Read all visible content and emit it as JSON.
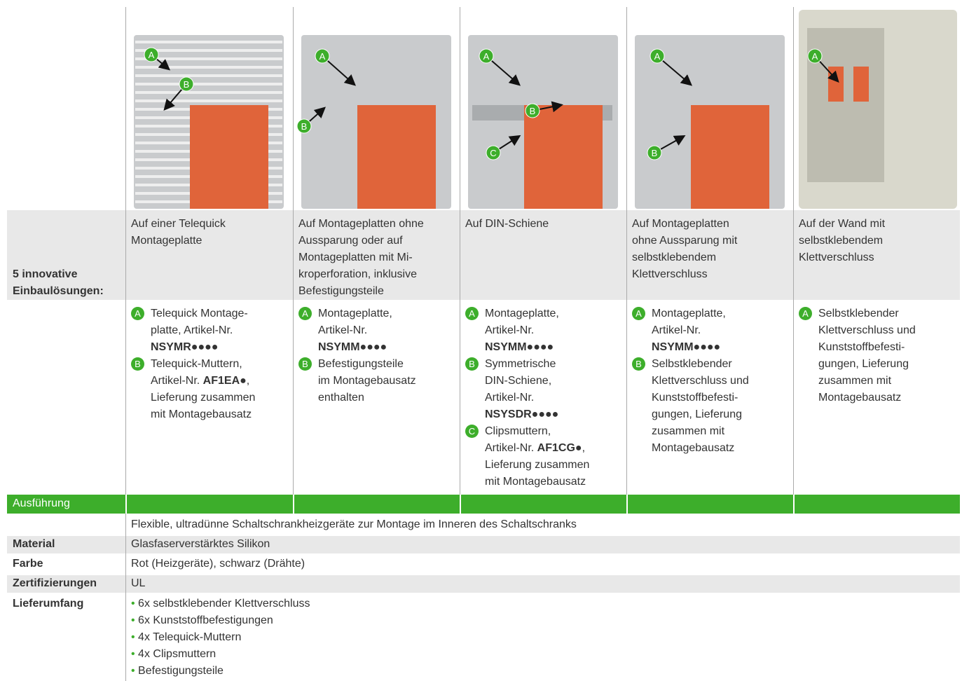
{
  "intro_label": [
    "5 innovative",
    "Einbaulösungen:"
  ],
  "solutions": [
    {
      "title": [
        "Auf einer Telequick",
        "Montageplatte"
      ],
      "callouts": [
        "A",
        "B"
      ],
      "parts": [
        {
          "marker": "A",
          "lines": [
            "Telequick Montage-",
            "platte, Artikel-Nr.",
            [
              {
                "bold": "NSYMR●●●●"
              }
            ]
          ]
        },
        {
          "marker": "B",
          "lines": [
            "Telequick-Muttern,",
            [
              "Artikel-Nr. ",
              {
                "bold": "AF1EA●"
              },
              ","
            ],
            "Lieferung zusammen",
            "mit Montagebausatz"
          ]
        }
      ]
    },
    {
      "title": [
        "Auf Montageplatten ohne",
        "Aussparung oder auf",
        "Montageplatten mit Mi-",
        "kroperforation, inklusive",
        "Befestigungsteile"
      ],
      "callouts": [
        "A",
        "B"
      ],
      "parts": [
        {
          "marker": "A",
          "lines": [
            "Montageplatte,",
            "Artikel-Nr.",
            [
              {
                "bold": "NSYMM●●●●"
              }
            ]
          ]
        },
        {
          "marker": "B",
          "lines": [
            "Befestigungsteile",
            "im Montagebausatz",
            "enthalten"
          ]
        }
      ]
    },
    {
      "title": [
        "Auf DIN-Schiene"
      ],
      "callouts": [
        "A",
        "B",
        "C"
      ],
      "parts": [
        {
          "marker": "A",
          "lines": [
            "Montageplatte,",
            "Artikel-Nr.",
            [
              {
                "bold": "NSYMM●●●●"
              }
            ]
          ]
        },
        {
          "marker": "B",
          "lines": [
            "Symmetrische",
            "DIN-Schiene,",
            "Artikel-Nr.",
            [
              {
                "bold": "NSYSDR●●●●"
              }
            ]
          ]
        },
        {
          "marker": "C",
          "lines": [
            "Clipsmuttern,",
            [
              "Artikel-Nr. ",
              {
                "bold": "AF1CG●"
              },
              ","
            ],
            "Lieferung zusammen",
            "mit Montagebausatz"
          ]
        }
      ]
    },
    {
      "title": [
        "Auf Montageplatten",
        "ohne Aussparung mit",
        "selbstklebendem",
        "Klettverschluss"
      ],
      "callouts": [
        "A",
        "B"
      ],
      "parts": [
        {
          "marker": "A",
          "lines": [
            "Montageplatte,",
            "Artikel-Nr.",
            [
              {
                "bold": "NSYMM●●●●"
              }
            ]
          ]
        },
        {
          "marker": "B",
          "lines": [
            "Selbstklebender",
            "Klettverschluss und",
            "Kunststoffbefesti-",
            "gungen, Lieferung",
            "zusammen mit",
            "Montagebausatz"
          ]
        }
      ]
    },
    {
      "title": [
        "Auf der Wand mit",
        "selbstklebendem",
        "Klettverschluss"
      ],
      "callouts": [
        "A"
      ],
      "parts": [
        {
          "marker": "A",
          "lines": [
            "Selbstklebender",
            "Klettverschluss und",
            "Kunststoffbefesti-",
            "gungen, Lieferung",
            "zusammen mit",
            "Montagebausatz"
          ]
        }
      ]
    }
  ],
  "section_heading": "Ausführung",
  "specs": [
    {
      "value": "Flexible, ultradünne Schaltschrankheizgeräte zur Montage im Inneren des Schaltschranks"
    },
    {
      "label": "Material",
      "value": "Glasfaserverstärktes Silikon"
    },
    {
      "label": "Farbe",
      "value": "Rot (Heizgeräte), schwarz (Drähte)"
    },
    {
      "label": "Zertifizierungen",
      "value": "UL"
    }
  ],
  "scope": {
    "label": "Lieferumfang",
    "items": [
      "6x selbstklebender Klettverschluss",
      "6x Kunststoffbefestigungen",
      "4x Telequick-Muttern",
      "4x Clipsmuttern",
      "Befestigungsteile"
    ]
  }
}
